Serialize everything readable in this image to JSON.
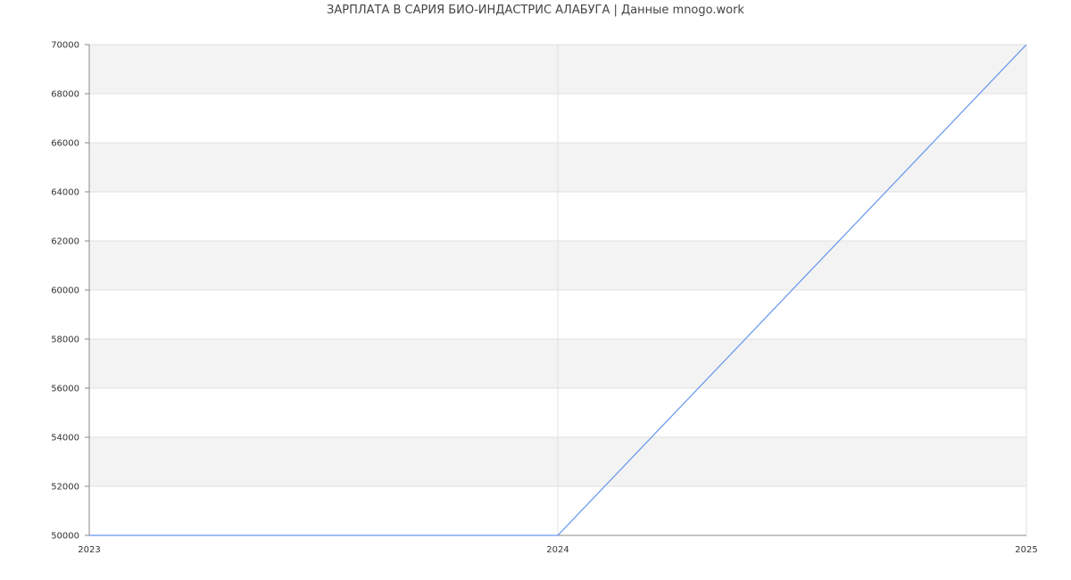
{
  "chart_data": {
    "type": "line",
    "title": "ЗАРПЛАТА В  САРИЯ БИО-ИНДАСТРИС АЛАБУГА | Данные mnogo.work",
    "xlabel": "",
    "ylabel": "",
    "x": [
      2023,
      2024,
      2025
    ],
    "x_tick_labels": [
      "2023",
      "2024",
      "2025"
    ],
    "xlim": [
      2023,
      2025
    ],
    "ylim": [
      50000,
      70000
    ],
    "y_tick_labels": [
      "50000",
      "52000",
      "54000",
      "56000",
      "58000",
      "60000",
      "62000",
      "64000",
      "66000",
      "68000",
      "70000"
    ],
    "series": [
      {
        "values": [
          50000,
          50000,
          70000
        ],
        "color": "#6495ed"
      }
    ],
    "grid": true,
    "band_color": "#f3f3f3",
    "legend": "none"
  }
}
